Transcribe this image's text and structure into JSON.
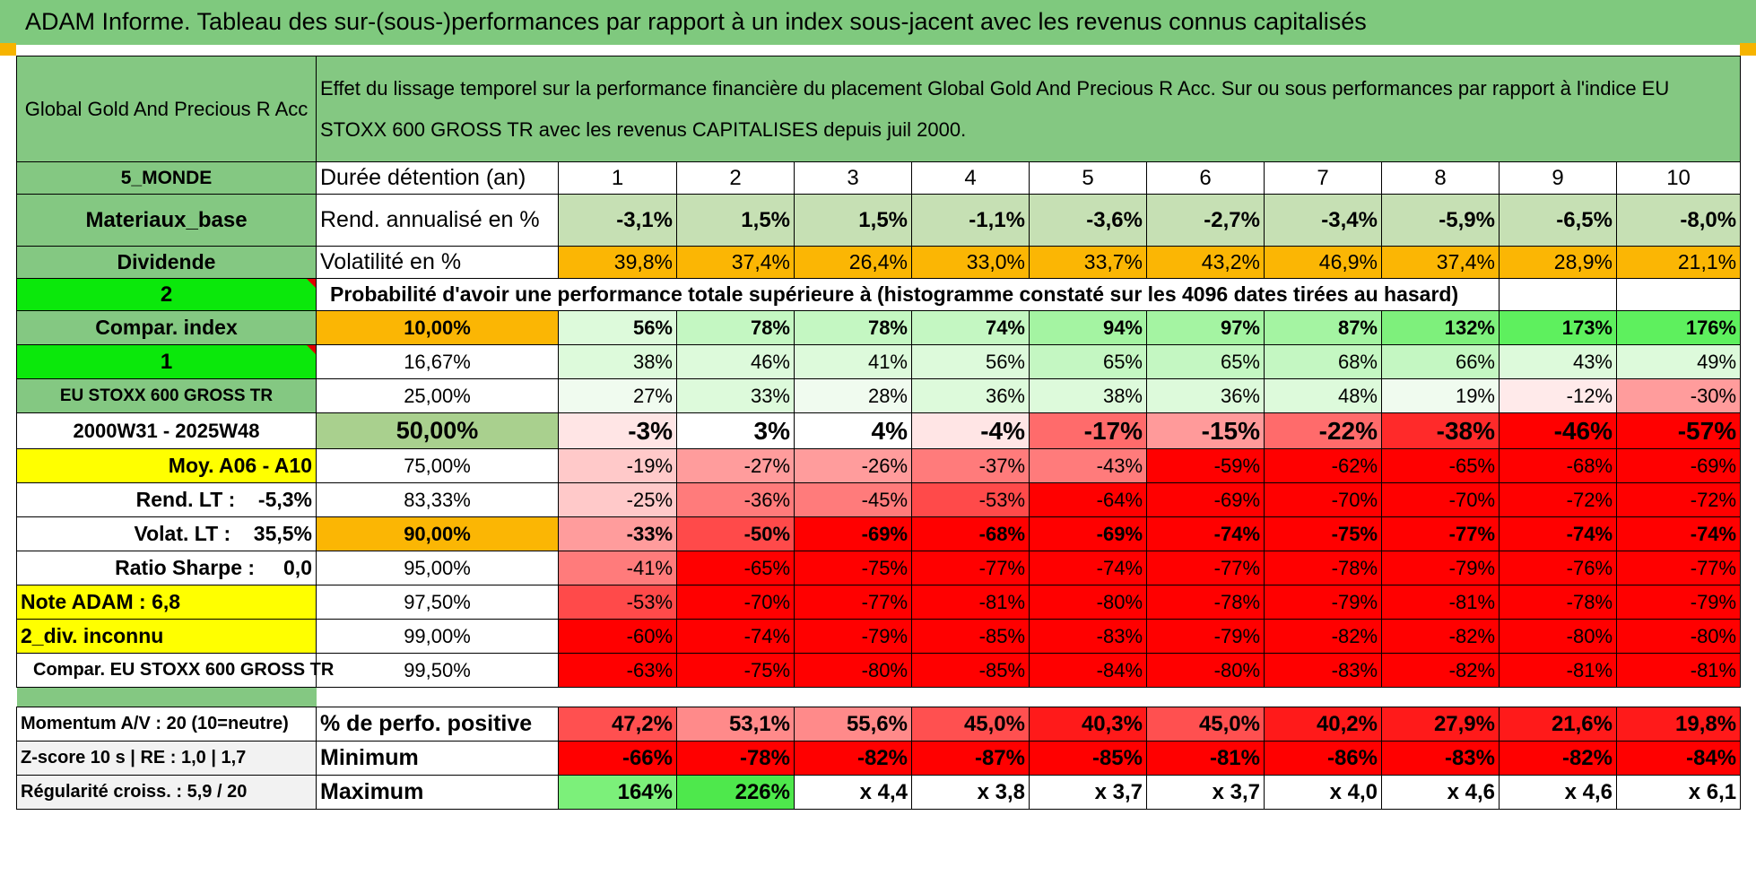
{
  "title": "ADAM Informe. Tableau des sur-(sous-)performances par rapport à un index sous-jacent avec les revenus connus capitalisés",
  "colors": {
    "header_green": "#84c882",
    "yellow": "#ffff00",
    "orange": "#fbb604",
    "red_text": "#e00000"
  },
  "fund": {
    "name": "Global Gold And Precious R Acc",
    "description": "Effet du lissage temporel sur la performance financière du placement Global Gold And Precious R Acc. Sur ou sous performances par rapport à l'indice EU STOXX 600 GROSS TR avec les revenus CAPITALISES depuis juil 2000.",
    "zone": "5_MONDE",
    "sector": "Materiaux_base",
    "dividend": "Dividende",
    "dividend_value": "2",
    "compar_label": "Compar. index",
    "compar_value": "1",
    "index_name": "EU STOXX 600 GROSS TR",
    "period": "2000W31 - 2025W48",
    "moy": "Moy. A06 - A10",
    "rend_lt": "Rend. LT :    -5,3%",
    "volat_lt": "Volat. LT :    35,5%",
    "sharpe": "Ratio Sharpe :     0,0",
    "note": "Note ADAM : 6,8",
    "div_status": "2_div. inconnu",
    "compar_full": "Compar. EU STOXX 600 GROSS TR"
  },
  "rows": {
    "duree_label": "Durée détention (an)",
    "years": [
      "1",
      "2",
      "3",
      "4",
      "5",
      "6",
      "7",
      "8",
      "9",
      "10"
    ],
    "rend_label": "Rend. annualisé en %",
    "rend": [
      "-3,1%",
      "1,5%",
      "1,5%",
      "-1,1%",
      "-3,6%",
      "-2,7%",
      "-3,4%",
      "-5,9%",
      "-6,5%",
      "-8,0%"
    ],
    "vol_label": "Volatilité en %",
    "vol": [
      "39,8%",
      "37,4%",
      "26,4%",
      "33,0%",
      "33,7%",
      "43,2%",
      "46,9%",
      "37,4%",
      "28,9%",
      "21,1%"
    ],
    "proba_label": "Probabilité d'avoir une performance totale supérieure à (histogramme constaté sur les 4096 dates tirées au hasard)"
  },
  "percentiles": [
    {
      "p": "10,00%",
      "vals": [
        "56%",
        "78%",
        "78%",
        "74%",
        "94%",
        "97%",
        "87%",
        "132%",
        "173%",
        "176%"
      ]
    },
    {
      "p": "16,67%",
      "vals": [
        "38%",
        "46%",
        "41%",
        "56%",
        "65%",
        "65%",
        "68%",
        "66%",
        "43%",
        "49%"
      ]
    },
    {
      "p": "25,00%",
      "vals": [
        "27%",
        "33%",
        "28%",
        "36%",
        "38%",
        "36%",
        "48%",
        "19%",
        "-12%",
        "-30%"
      ]
    },
    {
      "p": "50,00%",
      "vals": [
        "-3%",
        "3%",
        "4%",
        "-4%",
        "-17%",
        "-15%",
        "-22%",
        "-38%",
        "-46%",
        "-57%"
      ]
    },
    {
      "p": "75,00%",
      "vals": [
        "-19%",
        "-27%",
        "-26%",
        "-37%",
        "-43%",
        "-59%",
        "-62%",
        "-65%",
        "-68%",
        "-69%"
      ]
    },
    {
      "p": "83,33%",
      "vals": [
        "-25%",
        "-36%",
        "-45%",
        "-53%",
        "-64%",
        "-69%",
        "-70%",
        "-70%",
        "-72%",
        "-72%"
      ]
    },
    {
      "p": "90,00%",
      "vals": [
        "-33%",
        "-50%",
        "-69%",
        "-68%",
        "-69%",
        "-74%",
        "-75%",
        "-77%",
        "-74%",
        "-74%"
      ]
    },
    {
      "p": "95,00%",
      "vals": [
        "-41%",
        "-65%",
        "-75%",
        "-77%",
        "-74%",
        "-77%",
        "-78%",
        "-79%",
        "-76%",
        "-77%"
      ]
    },
    {
      "p": "97,50%",
      "vals": [
        "-53%",
        "-70%",
        "-77%",
        "-81%",
        "-80%",
        "-78%",
        "-79%",
        "-81%",
        "-78%",
        "-79%"
      ]
    },
    {
      "p": "99,00%",
      "vals": [
        "-60%",
        "-74%",
        "-79%",
        "-85%",
        "-83%",
        "-79%",
        "-82%",
        "-82%",
        "-80%",
        "-80%"
      ]
    },
    {
      "p": "99,50%",
      "vals": [
        "-63%",
        "-75%",
        "-80%",
        "-85%",
        "-84%",
        "-80%",
        "-83%",
        "-82%",
        "-81%",
        "-81%"
      ]
    }
  ],
  "bottom": [
    {
      "left": "Momentum A/V : 20 (10=neutre)",
      "label": "% de perfo. positive",
      "vals": [
        "47,2%",
        "53,1%",
        "55,6%",
        "45,0%",
        "40,3%",
        "45,0%",
        "40,2%",
        "27,9%",
        "21,6%",
        "19,8%"
      ]
    },
    {
      "left": "Z-score 10 s | RE : 1,0 | 1,7",
      "label": "Minimum",
      "vals": [
        "-66%",
        "-78%",
        "-82%",
        "-87%",
        "-85%",
        "-81%",
        "-86%",
        "-83%",
        "-82%",
        "-84%"
      ]
    },
    {
      "left": "Régularité croiss. : 5,9 / 20",
      "label": "Maximum",
      "vals": [
        "164%",
        "226%",
        "x 4,4",
        "x 3,8",
        "x 3,7",
        "x 3,7",
        "x 4,0",
        "x 4,6",
        "x 4,6",
        "x 6,1"
      ]
    }
  ]
}
